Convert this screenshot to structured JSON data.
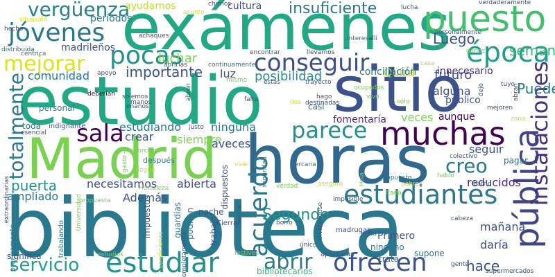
{
  "words": [
    {
      "text": "biblioteca",
      "color": "#2a788e"
    },
    {
      "text": "estudio",
      "color": "#22a884"
    },
    {
      "text": "exámenes",
      "color": "#22a884"
    },
    {
      "text": "horas",
      "color": "#31688e"
    },
    {
      "text": "sitio",
      "color": "#3b528b"
    },
    {
      "text": "Madrid",
      "color": "#7ad151"
    },
    {
      "text": "puesto",
      "color": "#44bf70"
    },
    {
      "text": "muchas",
      "color": "#440154"
    },
    {
      "text": "pública",
      "color": "#414487"
    },
    {
      "text": "estudiar",
      "color": "#21918c"
    },
    {
      "text": "estudiantes",
      "color": "#2a788e"
    },
    {
      "text": "conseguir",
      "color": "#3b528b"
    },
    {
      "text": "parece",
      "color": "#21918c"
    },
    {
      "text": "época",
      "color": "#1f9e89"
    },
    {
      "text": "acuerdo",
      "color": "#2a788e"
    },
    {
      "text": "pocas",
      "color": "#21918c"
    },
    {
      "text": "jóvenes",
      "color": "#2a788e"
    },
    {
      "text": "vergüenza",
      "color": "#26828e"
    },
    {
      "text": "ofrecen",
      "color": "#3b528b"
    },
    {
      "text": "instalaciones",
      "color": "#46327e"
    },
    {
      "text": "totalmente",
      "color": "#2a788e"
    },
    {
      "text": "sala",
      "color": "#440154"
    },
    {
      "text": "mejorar",
      "color": "#dde318"
    },
    {
      "text": "servicio",
      "color": "#1fa088"
    },
    {
      "text": "abrir",
      "color": "#2a788e"
    },
    {
      "text": "creo",
      "color": "#2a788e"
    },
    {
      "text": "Segundo",
      "color": "#21918c"
    },
    {
      "text": "insuficiente",
      "color": "#2a788e"
    },
    {
      "text": "semana",
      "color": "#35b779"
    },
    {
      "text": "Luego",
      "color": "#3b528b"
    },
    {
      "text": "importante",
      "color": "#3b528b"
    },
    {
      "text": "puerta",
      "color": "#21918c"
    },
    {
      "text": "Puede",
      "color": "#2a788e"
    },
    {
      "text": "posibilidad",
      "color": "#21918c"
    },
    {
      "text": "reducidos",
      "color": "#472d7b"
    },
    {
      "text": "hace",
      "color": "#3b528b"
    },
    {
      "text": "futuro",
      "color": "#3b528b"
    },
    {
      "text": "comunidad",
      "color": "#2a788e"
    },
    {
      "text": "luchar",
      "color": "#7ad151"
    },
    {
      "text": "ayudarnos",
      "color": "#bddf26"
    },
    {
      "text": "cultura",
      "color": "#3e4989"
    },
    {
      "text": "Quizá",
      "color": "#bddf26"
    },
    {
      "text": "alguna",
      "color": "#3b528b"
    },
    {
      "text": "público",
      "color": "#3b528b"
    },
    {
      "text": "estudiando",
      "color": "#2a788e"
    },
    {
      "text": "ninguna",
      "color": "#2a788e"
    },
    {
      "text": "veces",
      "color": "#7ad151"
    },
    {
      "text": "aunque",
      "color": "#440154"
    },
    {
      "text": "fomentaría",
      "color": "#472d7b"
    },
    {
      "text": "seguir",
      "color": "#3b528b"
    },
    {
      "text": "pagar",
      "color": "#2a788e"
    },
    {
      "text": "necesitamos",
      "color": "#3b528b"
    },
    {
      "text": "abierta",
      "color": "#3b528b"
    },
    {
      "text": "crear",
      "color": "#3b528b"
    },
    {
      "text": "siempre",
      "color": "#7ad151"
    },
    {
      "text": "aveces",
      "color": "#3b528b"
    },
    {
      "text": "luz",
      "color": "#3b528b"
    },
    {
      "text": "mañana",
      "color": "#3b528b"
    },
    {
      "text": "daría",
      "color": "#3b528b"
    },
    {
      "text": "ampliado",
      "color": "#2a788e"
    },
    {
      "text": "Además",
      "color": "#3b528b"
    },
    {
      "text": "madrileños",
      "color": "#3b528b"
    },
    {
      "text": "períodos",
      "color": "#2a788e"
    },
    {
      "text": "Primero",
      "color": "#3b528b"
    },
    {
      "text": "conciliación",
      "color": "#2a788e"
    },
    {
      "text": "innecesario",
      "color": "#472d7b"
    },
    {
      "text": "personal",
      "color": "#2a788e"
    },
    {
      "text": "toda",
      "color": "#2a788e"
    },
    {
      "text": "casi",
      "color": "#2a788e"
    },
    {
      "text": "noche",
      "color": "#3b528b"
    },
    {
      "text": "podrían",
      "color": "#2a788e"
    },
    {
      "text": "trabajo",
      "color": "#3b528b"
    },
    {
      "text": "dispuestos",
      "color": "#3b528b"
    },
    {
      "text": "guardias",
      "color": "#2a788e"
    },
    {
      "text": "impuestos",
      "color": "#3b528b"
    },
    {
      "text": "ningúno",
      "color": "#2a788e"
    },
    {
      "text": "supone",
      "color": "#2a788e"
    },
    {
      "text": "trata",
      "color": "#2a788e"
    },
    {
      "text": "significa",
      "color": "#3b528b"
    },
    {
      "text": "bibliotecarios",
      "color": "#35b779"
    },
    {
      "text": "Cierran",
      "color": "#3b528b"
    },
    {
      "text": "madrugas",
      "color": "#3b528b"
    },
    {
      "text": "aperturas",
      "color": "#3b528b"
    },
    {
      "text": "supermercados",
      "color": "#3b528b"
    },
    {
      "text": "gente",
      "color": "#3b528b"
    },
    {
      "text": "verdaderamente",
      "color": "#3b528b"
    },
    {
      "text": "lucha",
      "color": "#3b528b"
    },
    {
      "text": "personalmente",
      "color": "#3b528b"
    },
    {
      "text": "trayecto",
      "color": "#3b528b"
    },
    {
      "text": "tuyo",
      "color": "#3b528b"
    },
    {
      "text": "mejoren",
      "color": "#3b528b"
    },
    {
      "text": "llevamos",
      "color": "#3b528b"
    },
    {
      "text": "encontrar",
      "color": "#3b528b"
    },
    {
      "text": "continuamente",
      "color": "#2a788e"
    },
    {
      "text": "interesa",
      "color": "#2a788e"
    },
    {
      "text": "allí",
      "color": "#3b528b"
    },
    {
      "text": "achaques",
      "color": "#3b528b"
    },
    {
      "text": "abrirlas",
      "color": "#3b528b"
    },
    {
      "text": "apoyo",
      "color": "#3b528b"
    },
    {
      "text": "situación",
      "color": "#dde318"
    },
    {
      "text": "hecho",
      "color": "#3b528b"
    },
    {
      "text": "distribuida",
      "color": "#2a788e"
    },
    {
      "text": "céntrica",
      "color": "#2a788e"
    },
    {
      "text": "chirríos",
      "color": "#3b528b"
    },
    {
      "text": "asunto",
      "color": "#dde318"
    },
    {
      "text": "deberían",
      "color": "#440154"
    },
    {
      "text": "solemos",
      "color": "#3b528b"
    },
    {
      "text": "manos",
      "color": "#3b528b"
    },
    {
      "text": "enanos",
      "color": "#3b528b"
    },
    {
      "text": "falta",
      "color": "#3b528b"
    },
    {
      "text": "hago",
      "color": "#3b528b"
    },
    {
      "text": "destinadas",
      "color": "#3b528b"
    },
    {
      "text": "sólo",
      "color": "#7ad151"
    },
    {
      "text": "vivo",
      "color": "#7ad151"
    },
    {
      "text": "ocupados",
      "color": "#7ad151"
    },
    {
      "text": "estas",
      "color": "#3b528b"
    },
    {
      "text": "mismo",
      "color": "#7ad151"
    },
    {
      "text": "abren",
      "color": "#3b528b"
    },
    {
      "text": "dejo",
      "color": "#3b528b"
    },
    {
      "text": "abran",
      "color": "#3b528b"
    },
    {
      "text": "ganas",
      "color": "#7ad151"
    },
    {
      "text": "casa",
      "color": "#bddf26"
    },
    {
      "text": "zona",
      "color": "#dde318"
    },
    {
      "text": "colectivo",
      "color": "#3b528b"
    },
    {
      "text": "hablo",
      "color": "#7ad151"
    },
    {
      "text": "barrio",
      "color": "#2a788e"
    },
    {
      "text": "pobres",
      "color": "#bddf26"
    },
    {
      "text": "Cada",
      "color": "#7ad151"
    },
    {
      "text": "propuesto",
      "color": "#2a788e"
    },
    {
      "text": "Hola",
      "color": "#7ad151"
    },
    {
      "text": "imposible",
      "color": "#3b528b"
    },
    {
      "text": "aseguro",
      "color": "#bddf26"
    },
    {
      "text": "verdad",
      "color": "#7ad151"
    },
    {
      "text": "entra",
      "color": "#3b528b"
    },
    {
      "text": "olvidándose",
      "color": "#3b528b"
    },
    {
      "text": "borro",
      "color": "#3b528b"
    },
    {
      "text": "resto",
      "color": "#3b528b"
    },
    {
      "text": "cabeza",
      "color": "#3b528b"
    },
    {
      "text": "único",
      "color": "#3b528b"
    },
    {
      "text": "festivos",
      "color": "#7ad151"
    },
    {
      "text": "estudios",
      "color": "#7ad151"
    },
    {
      "text": "Completamente",
      "color": "#3b528b"
    },
    {
      "text": "condiciones",
      "color": "#bddf26"
    },
    {
      "text": "trabajando",
      "color": "#2a788e"
    },
    {
      "text": "precisamente",
      "color": "#2a788e"
    },
    {
      "text": "extraordinarias",
      "color": "#3b528b"
    },
    {
      "text": "Universidad",
      "color": "#7ad151"
    },
    {
      "text": "propuesta",
      "color": "#7ad151"
    },
    {
      "text": "Hortaleza",
      "color": "#7ad151"
    },
    {
      "text": "llegue",
      "color": "#bddf26"
    },
    {
      "text": "después",
      "color": "#2a788e"
    },
    {
      "text": "proporciona",
      "color": "#7ad151"
    },
    {
      "text": "gasto",
      "color": "#7ad151"
    },
    {
      "text": "indignante",
      "color": "#3b528b"
    },
    {
      "text": "esencial",
      "color": "#3b528b"
    },
    {
      "text": "justo",
      "color": "#3b528b"
    },
    {
      "text": "vale",
      "color": "#dde318"
    },
    {
      "text": "seguridad",
      "color": "#2a788e"
    },
    {
      "text": "cercana",
      "color": "#2a788e"
    },
    {
      "text": "dos",
      "color": "#dde318"
    }
  ]
}
